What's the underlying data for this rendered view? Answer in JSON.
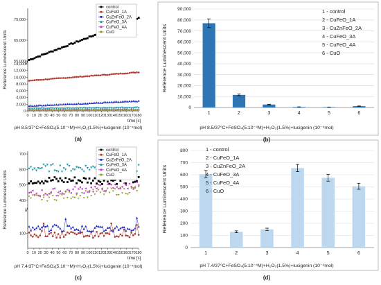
{
  "chart_data": [
    {
      "panel": "(a)",
      "type": "scatter",
      "ylabel": "Reference Luminescent Units",
      "xlabel": "time [s]",
      "caption": "pH 8.5/37°C+FeSO₄(5.10⁻⁴M)+H₂O₂(1.5%)+lucigenin (10⁻⁴mol)",
      "x_ticks": [
        "0",
        "10",
        "20",
        "30",
        "40",
        "50",
        "60",
        "70",
        "80",
        "90",
        "100",
        "110",
        "120",
        "130",
        "140",
        "150",
        "160",
        "170",
        "180"
      ],
      "y_ticks_lower": [
        "0",
        "2,000",
        "4,000",
        "6,000",
        "8,000",
        "10,000",
        "12,000",
        "14,000"
      ],
      "y_ticks_upper": [
        "55,000",
        "65,000",
        "75,000"
      ],
      "axis_break": "//",
      "legend": [
        "control",
        "CuFeO_1A",
        "CuZnFeO_2A",
        "CuFeO_3A",
        "CuFeO_4A",
        "CuO"
      ],
      "colors": [
        "#000000",
        "#b03a2e",
        "#1f2dbd",
        "#1a9aaa",
        "#c040c0",
        "#8a9a20"
      ],
      "series": [
        {
          "name": "control",
          "y_start": 55500,
          "y_end": 75500
        },
        {
          "name": "CuFeO_1A",
          "y_start": 9000,
          "y_end": 11500
        },
        {
          "name": "CuZnFeO_2A",
          "y_start": 1500,
          "y_end": 2900
        },
        {
          "name": "CuFeO_3A",
          "y_start": 700,
          "y_end": 1000
        },
        {
          "name": "CuFeO_4A",
          "y_start": 300,
          "y_end": 400
        },
        {
          "name": "CuO",
          "y_start": 150,
          "y_end": 250
        }
      ]
    },
    {
      "panel": "(b)",
      "type": "bar",
      "ylabel": "Reference Luminescent Units",
      "categories": [
        "1",
        "2",
        "3",
        "4",
        "5",
        "6"
      ],
      "values": [
        77000,
        11500,
        2700,
        500,
        350,
        1200
      ],
      "errors": [
        4000,
        800,
        300,
        100,
        100,
        200
      ],
      "y_ticks": [
        "0",
        "10,000",
        "20,000",
        "30,000",
        "40,000",
        "50,000",
        "60,000",
        "70,000",
        "80,000",
        "90,000"
      ],
      "ylim": [
        0,
        90000
      ],
      "legend": [
        "1 - control",
        "2 - CuFeO_1A",
        "3 - CuZnFeO_2A",
        "4 - CuFeO_3A",
        "5 - CuFeO_4A",
        "6 - CuO"
      ],
      "bar_color": "#2e75b6",
      "caption": "pH 8.5/37°C+FeSO₄(5.10⁻⁴M)+H₂O₂(1.5%)+lucigenin (10⁻⁴mol)"
    },
    {
      "panel": "(c)",
      "type": "scatter",
      "ylabel": "Reference Luminescent Units",
      "xlabel": "time [s]",
      "caption": "pH 7.4/37°C+FeSO₄(5.10⁻⁴M)+H₂O₂(1.5%)+lucigenin (10⁻⁴mol)",
      "x_ticks": [
        "0",
        "10",
        "20",
        "30",
        "40",
        "50",
        "60",
        "70",
        "80",
        "90",
        "100",
        "110",
        "120",
        "130",
        "140",
        "150",
        "160",
        "170",
        "180"
      ],
      "y_ticks_upper": [
        "400",
        "500",
        "600",
        "700"
      ],
      "y_ticks_lower": [
        "100"
      ],
      "axis_break": "//",
      "legend": [
        "control",
        "CuFeO_1A",
        "CuZnFeO_2A",
        "CuFeO_3A",
        "CuFeO_4A",
        "CuO"
      ],
      "colors": [
        "#000000",
        "#b03a2e",
        "#1f2dbd",
        "#1a9aaa",
        "#c040c0",
        "#8a9a20"
      ],
      "series": [
        {
          "name": "control",
          "y_mean": 530
        },
        {
          "name": "CuFeO_1A",
          "y_mean": 90
        },
        {
          "name": "CuZnFeO_2A",
          "y_mean": 130
        },
        {
          "name": "CuFeO_3A",
          "y_mean": 610
        },
        {
          "name": "CuFeO_4A",
          "y_mean": 470
        },
        {
          "name": "CuO",
          "y_mean": 440
        }
      ]
    },
    {
      "panel": "(d)",
      "type": "bar",
      "ylabel": "Reference Luminescent Units",
      "categories": [
        "1",
        "2",
        "3",
        "4",
        "5",
        "6"
      ],
      "values": [
        605,
        130,
        150,
        655,
        575,
        505
      ],
      "errors": [
        30,
        8,
        10,
        30,
        28,
        25
      ],
      "y_ticks": [
        "0",
        "100",
        "200",
        "300",
        "400",
        "500",
        "600",
        "700",
        "800"
      ],
      "ylim": [
        0,
        800
      ],
      "legend": [
        "1 - control",
        "2 - CuFeO_1A",
        "3 - CuZnFeO_2A",
        "4 - CuFeO_3A",
        "5 - CuFeO_4A",
        "6 - CuO"
      ],
      "bar_color": "#bdd7ee",
      "caption": "pH 7.4/37°C+FeSO₄(5.10⁻⁴M)+H₂O₂(1.5%)+lucigenin (10⁻⁴mol)"
    }
  ]
}
